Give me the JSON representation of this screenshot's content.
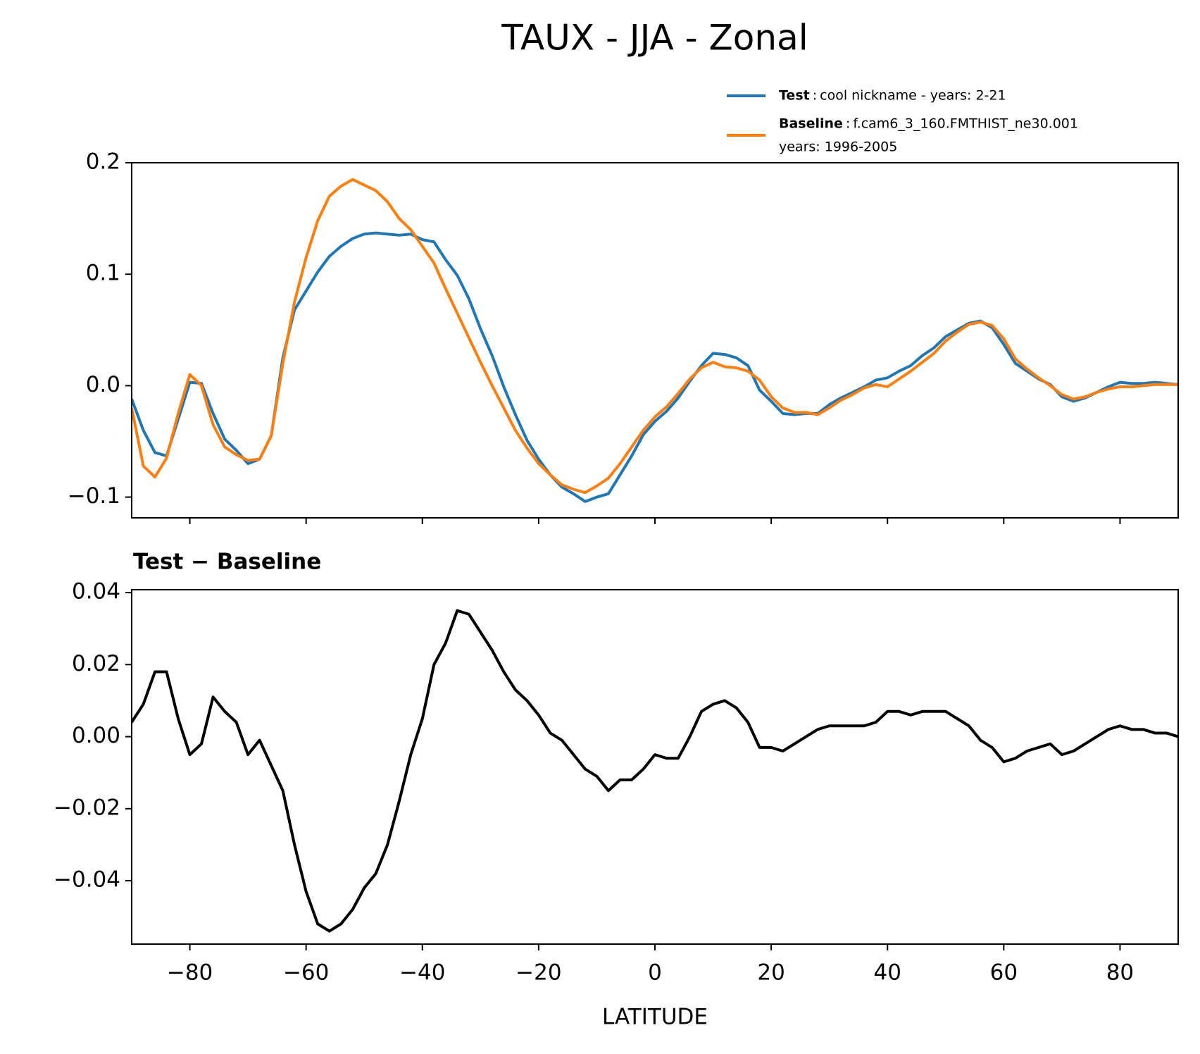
{
  "title": "TAUX - JJA - Zonal",
  "chart_data": [
    {
      "type": "line",
      "legend": {
        "separator": ":"
      },
      "x": [
        -90,
        -88,
        -86,
        -84,
        -82,
        -80,
        -78,
        -76,
        -74,
        -72,
        -70,
        -68,
        -66,
        -64,
        -62,
        -60,
        -58,
        -56,
        -54,
        -52,
        -50,
        -48,
        -46,
        -44,
        -42,
        -40,
        -38,
        -36,
        -34,
        -32,
        -30,
        -28,
        -26,
        -24,
        -22,
        -20,
        -18,
        -16,
        -14,
        -12,
        -10,
        -8,
        -6,
        -4,
        -2,
        0,
        2,
        4,
        6,
        8,
        10,
        12,
        14,
        16,
        18,
        20,
        22,
        24,
        26,
        28,
        30,
        32,
        34,
        36,
        38,
        40,
        42,
        44,
        46,
        48,
        50,
        52,
        54,
        56,
        58,
        60,
        62,
        64,
        66,
        68,
        70,
        72,
        74,
        76,
        78,
        80,
        82,
        84,
        86,
        88,
        90
      ],
      "series": [
        {
          "name": "Test",
          "description": [
            "cool nickname - years: 2-21"
          ],
          "color": "#1f77b4",
          "values": [
            -0.012,
            -0.04,
            -0.06,
            -0.063,
            -0.03,
            0.003,
            0.002,
            -0.025,
            -0.048,
            -0.058,
            -0.07,
            -0.066,
            -0.045,
            0.025,
            0.068,
            0.085,
            0.102,
            0.116,
            0.125,
            0.132,
            0.136,
            0.137,
            0.136,
            0.135,
            0.136,
            0.131,
            0.129,
            0.113,
            0.099,
            0.078,
            0.051,
            0.027,
            -0.001,
            -0.026,
            -0.049,
            -0.066,
            -0.08,
            -0.091,
            -0.097,
            -0.104,
            -0.1,
            -0.097,
            -0.08,
            -0.063,
            -0.044,
            -0.032,
            -0.023,
            -0.011,
            0.004,
            0.018,
            0.029,
            0.028,
            0.025,
            0.018,
            -0.004,
            -0.014,
            -0.025,
            -0.026,
            -0.025,
            -0.025,
            -0.017,
            -0.011,
            -0.006,
            -0.001,
            0.005,
            0.007,
            0.013,
            0.018,
            0.027,
            0.034,
            0.044,
            0.05,
            0.056,
            0.058,
            0.052,
            0.037,
            0.02,
            0.013,
            0.006,
            0.001,
            -0.01,
            -0.014,
            -0.011,
            -0.006,
            -0.001,
            0.003,
            0.002,
            0.002,
            0.003,
            0.002,
            0.001
          ]
        },
        {
          "name": "Baseline",
          "description": [
            "f.cam6_3_160.FMTHIST_ne30.001",
            "years: 1996-2005"
          ],
          "color": "#ff7f0e",
          "values": [
            -0.02,
            -0.072,
            -0.082,
            -0.065,
            -0.025,
            0.01,
            0.0,
            -0.035,
            -0.055,
            -0.062,
            -0.067,
            -0.066,
            -0.045,
            0.02,
            0.075,
            0.115,
            0.148,
            0.17,
            0.179,
            0.185,
            0.18,
            0.175,
            0.165,
            0.15,
            0.14,
            0.125,
            0.11,
            0.087,
            0.065,
            0.043,
            0.021,
            0.0,
            -0.02,
            -0.04,
            -0.056,
            -0.07,
            -0.08,
            -0.089,
            -0.093,
            -0.096,
            -0.09,
            -0.083,
            -0.07,
            -0.055,
            -0.04,
            -0.028,
            -0.019,
            -0.007,
            0.006,
            0.016,
            0.021,
            0.017,
            0.016,
            0.013,
            0.005,
            -0.01,
            -0.02,
            -0.024,
            -0.024,
            -0.026,
            -0.02,
            -0.013,
            -0.008,
            -0.002,
            0.001,
            -0.001,
            0.006,
            0.013,
            0.021,
            0.029,
            0.04,
            0.048,
            0.055,
            0.057,
            0.054,
            0.042,
            0.024,
            0.015,
            0.007,
            0.0,
            -0.008,
            -0.012,
            -0.01,
            -0.006,
            -0.003,
            -0.001,
            -0.001,
            0.0,
            0.001,
            0.001,
            0.001
          ]
        }
      ],
      "xlim": [
        -90,
        90
      ],
      "ylim": [
        -0.1186,
        0.2
      ],
      "yticks": [
        {
          "value": -0.1,
          "label": "−0.1"
        },
        {
          "value": 0,
          "label": "0.0"
        },
        0.1,
        0.2
      ]
    },
    {
      "type": "line",
      "title": "Test − Baseline",
      "xlabel": "LATITUDE",
      "x": [
        -90,
        -88,
        -86,
        -84,
        -82,
        -80,
        -78,
        -76,
        -74,
        -72,
        -70,
        -68,
        -66,
        -64,
        -62,
        -60,
        -58,
        -56,
        -54,
        -52,
        -50,
        -48,
        -46,
        -44,
        -42,
        -40,
        -38,
        -36,
        -34,
        -32,
        -30,
        -28,
        -26,
        -24,
        -22,
        -20,
        -18,
        -16,
        -14,
        -12,
        -10,
        -8,
        -6,
        -4,
        -2,
        0,
        2,
        4,
        6,
        8,
        10,
        12,
        14,
        16,
        18,
        20,
        22,
        24,
        26,
        28,
        30,
        32,
        34,
        36,
        38,
        40,
        42,
        44,
        46,
        48,
        50,
        52,
        54,
        56,
        58,
        60,
        62,
        64,
        66,
        68,
        70,
        72,
        74,
        76,
        78,
        80,
        82,
        84,
        86,
        88,
        90
      ],
      "series": [
        {
          "color": "#000000",
          "values": [
            0.004,
            0.009,
            0.018,
            0.018,
            0.005,
            -0.005,
            -0.002,
            0.011,
            0.007,
            0.004,
            -0.005,
            -0.001,
            -0.008,
            -0.015,
            -0.03,
            -0.043,
            -0.052,
            -0.054,
            -0.052,
            -0.048,
            -0.042,
            -0.038,
            -0.03,
            -0.018,
            -0.005,
            0.005,
            0.02,
            0.026,
            0.035,
            0.034,
            0.029,
            0.024,
            0.018,
            0.013,
            0.01,
            0.006,
            0.001,
            -0.001,
            -0.005,
            -0.009,
            -0.011,
            -0.015,
            -0.012,
            -0.012,
            -0.009,
            -0.005,
            -0.006,
            -0.006,
            0.0,
            0.007,
            0.009,
            0.01,
            0.008,
            0.004,
            -0.003,
            -0.003,
            -0.004,
            -0.002,
            0.0,
            0.002,
            0.003,
            0.003,
            0.003,
            0.003,
            0.004,
            0.007,
            0.007,
            0.006,
            0.007,
            0.007,
            0.007,
            0.005,
            0.003,
            -0.001,
            -0.003,
            -0.007,
            -0.006,
            -0.004,
            -0.003,
            -0.002,
            -0.005,
            -0.004,
            -0.002,
            0.0,
            0.002,
            0.003,
            0.002,
            0.002,
            0.001,
            0.001,
            0.0
          ]
        }
      ],
      "xlim": [
        -90,
        90
      ],
      "ylim": [
        -0.0576,
        0.0408
      ],
      "xticks": [
        {
          "value": -80,
          "label": "−80"
        },
        {
          "value": -60,
          "label": "−60"
        },
        {
          "value": -40,
          "label": "−40"
        },
        {
          "value": -20,
          "label": "−20"
        },
        0,
        20,
        40,
        60,
        80
      ],
      "yticks": [
        {
          "value": -0.04,
          "label": "−0.04"
        },
        {
          "value": -0.02,
          "label": "−0.02"
        },
        {
          "value": 0,
          "label": "0.00"
        },
        0.02,
        0.04
      ]
    }
  ]
}
